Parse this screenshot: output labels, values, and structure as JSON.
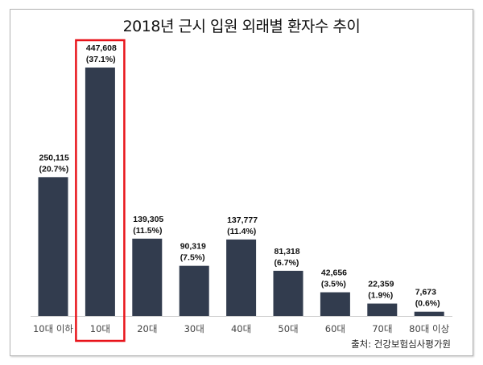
{
  "chart_data": {
    "type": "bar",
    "title": "2018년 근시 입원 외래별 환자수 추이",
    "categories": [
      "10대 이하",
      "10대",
      "20대",
      "30대",
      "40대",
      "50대",
      "60대",
      "70대",
      "80대 이상"
    ],
    "values": [
      250115,
      447608,
      139305,
      90319,
      137777,
      81318,
      42656,
      22359,
      7673
    ],
    "value_labels": [
      "250,115",
      "447,608",
      "139,305",
      "90,319",
      "137,777",
      "81,318",
      "42,656",
      "22,359",
      "7,673"
    ],
    "percent_labels": [
      "(20.7%)",
      "(37.1%)",
      "(11.5%)",
      "(7.5%)",
      "(11.4%)",
      "(6.7%)",
      "(3.5%)",
      "(1.9%)",
      "(0.6%)"
    ],
    "highlight": "10대",
    "ylim": [
      0,
      447608
    ],
    "grid": false,
    "source": "출처: 건강보험심사평가원",
    "colors": {
      "bar": "#323c4e",
      "highlight": "#e8141b"
    }
  }
}
